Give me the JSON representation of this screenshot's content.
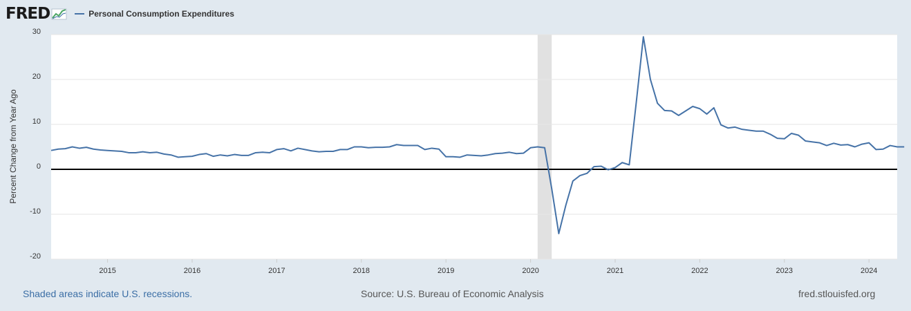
{
  "logo": {
    "text": "FRED"
  },
  "colors": {
    "series": "#4572a7",
    "recession": "#e1e1e1",
    "zero_line": "#000000",
    "grid": "#e6e6e6",
    "background": "#e1e9f0"
  },
  "footer": {
    "recession_note": "Shaded areas indicate U.S. recessions.",
    "source": "Source: U.S. Bureau of Economic Analysis",
    "site": "fred.stlouisfed.org"
  },
  "chart_data": {
    "type": "line",
    "title": "",
    "ylabel": "Percent Change from Year Ago",
    "xlabel": "",
    "ylim": [
      -20,
      30
    ],
    "yticks": [
      30,
      20,
      10,
      0,
      -10,
      -20
    ],
    "xlim": [
      "2014-05",
      "2024-05"
    ],
    "xticks": [
      "2015",
      "2016",
      "2017",
      "2018",
      "2019",
      "2020",
      "2021",
      "2022",
      "2023",
      "2024"
    ],
    "grid": true,
    "legend": "top-left",
    "recessions": [
      {
        "start": "2020-02",
        "end": "2020-04"
      }
    ],
    "series": [
      {
        "name": "Personal Consumption Expenditures",
        "start": "2014-05",
        "values": [
          4.2,
          4.5,
          4.6,
          5.0,
          4.7,
          4.9,
          4.5,
          4.3,
          4.2,
          4.1,
          4.0,
          3.7,
          3.7,
          3.9,
          3.7,
          3.8,
          3.4,
          3.2,
          2.7,
          2.8,
          2.9,
          3.3,
          3.5,
          2.9,
          3.2,
          3.0,
          3.3,
          3.1,
          3.1,
          3.7,
          3.8,
          3.7,
          4.4,
          4.6,
          4.1,
          4.7,
          4.4,
          4.1,
          3.9,
          4.0,
          4.0,
          4.4,
          4.4,
          5.0,
          5.0,
          4.8,
          4.9,
          4.9,
          5.0,
          5.5,
          5.3,
          5.3,
          5.3,
          4.4,
          4.7,
          4.5,
          2.8,
          2.8,
          2.7,
          3.2,
          3.1,
          3.0,
          3.2,
          3.5,
          3.6,
          3.8,
          3.5,
          3.6,
          4.8,
          5.0,
          4.8,
          -4.3,
          -14.3,
          -8.0,
          -2.6,
          -1.4,
          -0.9,
          0.6,
          0.7,
          -0.1,
          0.4,
          1.5,
          1.0,
          15.0,
          29.5,
          20.0,
          14.7,
          13.1,
          13.0,
          12.0,
          13.0,
          14.0,
          13.5,
          12.3,
          13.7,
          9.9,
          9.2,
          9.4,
          8.9,
          8.7,
          8.5,
          8.5,
          7.8,
          6.9,
          6.8,
          8.0,
          7.6,
          6.3,
          6.1,
          5.9,
          5.3,
          5.8,
          5.4,
          5.5,
          5.0,
          5.6,
          5.9,
          4.4,
          4.5,
          5.3,
          5.0,
          5.0
        ]
      }
    ]
  }
}
